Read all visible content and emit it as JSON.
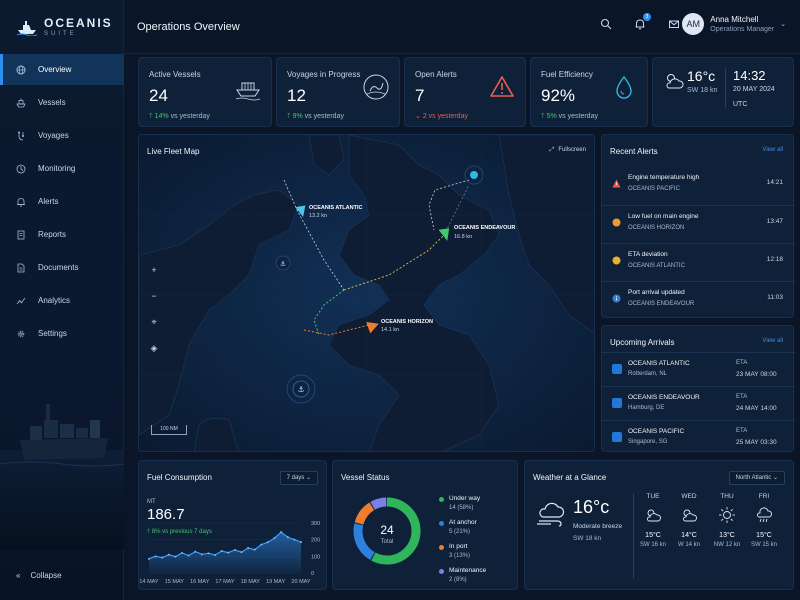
{
  "brand": {
    "name": "OCEANIS",
    "sub": "SUITE"
  },
  "sidebar": {
    "items": [
      {
        "label": "Overview",
        "icon": "globe-icon",
        "active": true
      },
      {
        "label": "Vessels",
        "icon": "ship-icon"
      },
      {
        "label": "Voyages",
        "icon": "route-icon"
      },
      {
        "label": "Monitoring",
        "icon": "monitoring-icon"
      },
      {
        "label": "Alerts",
        "icon": "bell-icon"
      },
      {
        "label": "Reports",
        "icon": "report-icon"
      },
      {
        "label": "Documents",
        "icon": "document-icon"
      },
      {
        "label": "Analytics",
        "icon": "analytics-icon"
      },
      {
        "label": "Settings",
        "icon": "gear-icon"
      }
    ],
    "collapse_label": "Collapse"
  },
  "header": {
    "title": "Operations Overview",
    "notification_count": "3",
    "user": {
      "initials": "AM",
      "name": "Anna Mitchell",
      "role": "Operations Manager"
    }
  },
  "kpis": [
    {
      "title": "Active Vessels",
      "value": "24",
      "delta": "14%",
      "delta_text": "vs yesterday",
      "trend": "up",
      "icon": "ship-icon"
    },
    {
      "title": "Voyages in Progress",
      "value": "12",
      "delta": "9%",
      "delta_text": "vs yesterday",
      "trend": "up",
      "icon": "route-icon"
    },
    {
      "title": "Open Alerts",
      "value": "7",
      "delta": "2",
      "delta_text": "vs yesterday",
      "trend": "down",
      "icon": "warning-icon"
    },
    {
      "title": "Fuel Efficiency",
      "value": "92%",
      "delta": "5%",
      "delta_text": "vs yesterday",
      "trend": "up",
      "icon": "drop-icon"
    }
  ],
  "weather_now": {
    "temp": "16°c",
    "wind": "SW 18 kn",
    "time": "14:32",
    "date": "20 MAY 2024",
    "tz": "UTC"
  },
  "map": {
    "title": "Live Fleet Map",
    "fullscreen_label": "Fullscreen",
    "scale_label": "100 NM",
    "vessels": [
      {
        "name": "OCEANIS ATLANTIC",
        "speed": "13.2 kn"
      },
      {
        "name": "OCEANIS ENDEAVOUR",
        "speed": "16.8 kn"
      },
      {
        "name": "OCEANIS HORIZON",
        "speed": "14.1 kn"
      }
    ],
    "controls": [
      "+",
      "−",
      "⌖",
      "◈"
    ]
  },
  "recent_alerts": {
    "title": "Recent Alerts",
    "view_all": "View all",
    "items": [
      {
        "title": "Engine temperature high",
        "vessel": "OCEANIS PACIFIC",
        "time": "14:21",
        "level": "critical"
      },
      {
        "title": "Low fuel on main engine",
        "vessel": "OCEANIS HORIZON",
        "time": "13:47",
        "level": "warning"
      },
      {
        "title": "ETA deviation",
        "vessel": "OCEANIS ATLANTIC",
        "time": "12:18",
        "level": "warning"
      },
      {
        "title": "Port arrival updated",
        "vessel": "OCEANIS ENDEAVOUR",
        "time": "11:03",
        "level": "info"
      }
    ]
  },
  "arrivals": {
    "title": "Upcoming Arrivals",
    "view_all": "View all",
    "eta_label": "ETA",
    "items": [
      {
        "vessel": "OCEANIS ATLANTIC",
        "port": "Rotterdam, NL",
        "eta": "23 MAY 08:00"
      },
      {
        "vessel": "OCEANIS ENDEAVOUR",
        "port": "Hamburg, DE",
        "eta": "24 MAY 14:00"
      },
      {
        "vessel": "OCEANIS PACIFIC",
        "port": "Singapore, SG",
        "eta": "25 MAY 03:30"
      }
    ]
  },
  "fuel": {
    "title": "Fuel Consumption",
    "range": "7 days",
    "unit": "MT",
    "value": "186.7",
    "delta": "8% vs previous 7 days"
  },
  "chart_data": {
    "type": "area",
    "title": "Fuel Consumption",
    "ylabel": "MT",
    "ylim": [
      0,
      300
    ],
    "yticks": [
      "300",
      "200",
      "100",
      "0"
    ],
    "xticks": [
      "14 MAY",
      "15 MAY",
      "16 MAY",
      "17 MAY",
      "18 MAY",
      "19 MAY",
      "20 MAY"
    ],
    "series": [
      {
        "values": [
          85,
          100,
          92,
          110,
          98,
          120,
          105,
          128,
          112,
          118,
          108,
          132,
          122,
          138,
          125,
          150,
          140,
          170,
          185,
          210,
          245,
          215,
          200,
          185
        ]
      }
    ]
  },
  "vessel_status": {
    "title": "Vessel Status",
    "total": "24",
    "total_label": "Total",
    "items": [
      {
        "label": "Under way",
        "value": "14 (58%)",
        "count": 14,
        "color": "#2fb55a"
      },
      {
        "label": "At anchor",
        "value": "5 (21%)",
        "count": 5,
        "color": "#2f7fdc"
      },
      {
        "label": "In port",
        "value": "3 (13%)",
        "count": 3,
        "color": "#ef7d2b"
      },
      {
        "label": "Maintenance",
        "value": "2 (8%)",
        "count": 2,
        "color": "#7b80e6"
      }
    ]
  },
  "glance": {
    "title": "Weather at a Glance",
    "region": "North Atlantic",
    "temp": "16°c",
    "desc": "Moderate breeze",
    "wind": "SW 18 kn",
    "forecast": [
      {
        "day": "TUE",
        "temp": "15°C",
        "wind": "SW 16 kn",
        "icon": "partly-cloudy-icon"
      },
      {
        "day": "WED",
        "temp": "14°C",
        "wind": "W 14 kn",
        "icon": "partly-cloudy-icon"
      },
      {
        "day": "THU",
        "temp": "13°C",
        "wind": "NW 12 kn",
        "icon": "sun-icon"
      },
      {
        "day": "FRI",
        "temp": "15°C",
        "wind": "SW 15 kn",
        "icon": "rain-icon"
      }
    ]
  }
}
